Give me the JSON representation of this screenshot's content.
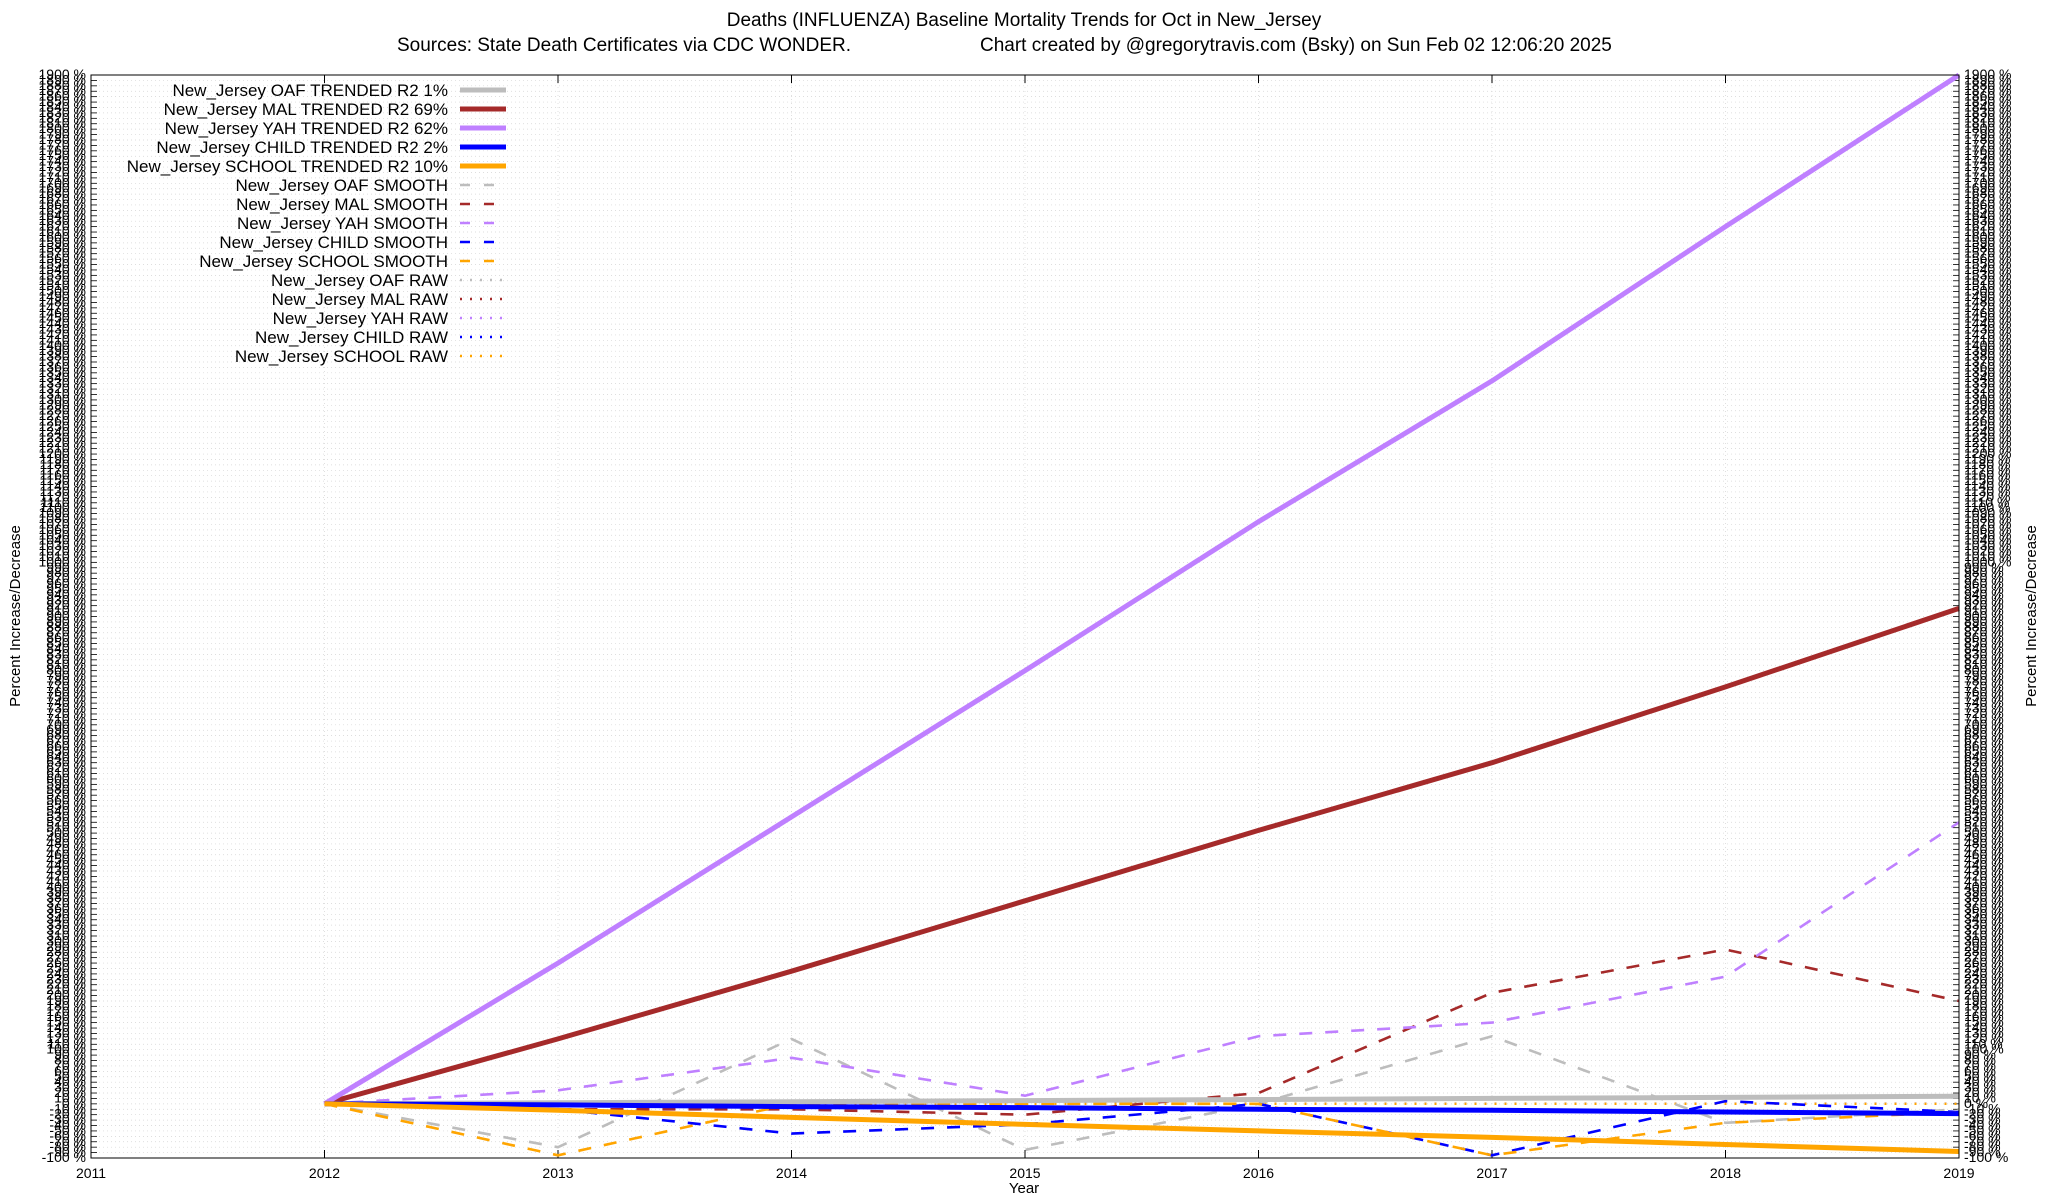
{
  "chart_data": {
    "type": "line",
    "title": "Deaths (INFLUENZA)  Baseline Mortality Trends for Oct in New_Jersey",
    "subtitle_left": "Sources: State Death Certificates via CDC WONDER.",
    "subtitle_right": "Chart created by @gregorytravis.com (Bsky) on Sun Feb 02 12:06:20 2025",
    "xlabel": "Year",
    "ylabel_left": "Percent Increase/Decrease",
    "ylabel_right": "Percent Increase/Decrease",
    "xlim": [
      2011,
      2019
    ],
    "ylim": [
      -100,
      1900
    ],
    "x_ticks": [
      "2011",
      "2012",
      "2013",
      "2014",
      "2015",
      "2016",
      "2017",
      "2018",
      "2019"
    ],
    "y_tick_step": 10,
    "y_tick_suffix": " %",
    "grid": true,
    "legend_position": "top-left",
    "series": [
      {
        "name": "New_Jersey OAF TRENDED R2  1%",
        "style": "solid",
        "color": "#bdbdbd",
        "x": [
          2012,
          2013,
          2014,
          2015,
          2016,
          2017,
          2018,
          2019
        ],
        "values": [
          0,
          2,
          4,
          6,
          8,
          10,
          12,
          14
        ]
      },
      {
        "name": "New_Jersey MAL TRENDED R2  69%",
        "style": "solid",
        "color": "#a52a2a",
        "x": [
          2012,
          2013,
          2014,
          2015,
          2016,
          2017,
          2018,
          2019
        ],
        "values": [
          0,
          120,
          245,
          375,
          505,
          630,
          770,
          915
        ]
      },
      {
        "name": "New_Jersey YAH TRENDED R2  62%",
        "style": "solid",
        "color": "#bf80ff",
        "x": [
          2012,
          2013,
          2014,
          2015,
          2016,
          2017,
          2018,
          2019
        ],
        "values": [
          0,
          260,
          530,
          800,
          1075,
          1335,
          1620,
          1900
        ]
      },
      {
        "name": "New_Jersey CHILD TRENDED R2  2%",
        "style": "solid",
        "color": "#0000ff",
        "x": [
          2012,
          2013,
          2014,
          2015,
          2016,
          2017,
          2018,
          2019
        ],
        "values": [
          0,
          -2,
          -5,
          -7,
          -10,
          -12,
          -15,
          -18
        ]
      },
      {
        "name": "New_Jersey SCHOOL TRENDED R2  10%",
        "style": "solid",
        "color": "#ffa500",
        "x": [
          2012,
          2013,
          2014,
          2015,
          2016,
          2017,
          2018,
          2019
        ],
        "values": [
          0,
          -12,
          -25,
          -38,
          -50,
          -62,
          -75,
          -88
        ]
      },
      {
        "name": "New_Jersey OAF SMOOTH",
        "style": "dashed",
        "color": "#bdbdbd",
        "x": [
          2012,
          2013,
          2014,
          2015,
          2016,
          2017,
          2018,
          2019
        ],
        "values": [
          0,
          -80,
          120,
          -85,
          0,
          125,
          -35,
          -10
        ]
      },
      {
        "name": "New_Jersey MAL SMOOTH",
        "style": "dashed",
        "color": "#a52a2a",
        "x": [
          2012,
          2013,
          2014,
          2015,
          2016,
          2017,
          2018,
          2019
        ],
        "values": [
          0,
          -10,
          -10,
          -20,
          20,
          205,
          285,
          190
        ]
      },
      {
        "name": "New_Jersey YAH SMOOTH",
        "style": "dashed",
        "color": "#bf80ff",
        "x": [
          2012,
          2013,
          2014,
          2015,
          2016,
          2017,
          2018,
          2019
        ],
        "values": [
          0,
          25,
          85,
          15,
          125,
          150,
          235,
          520
        ]
      },
      {
        "name": "New_Jersey CHILD SMOOTH",
        "style": "dashed",
        "color": "#0000ff",
        "x": [
          2012,
          2013,
          2014,
          2015,
          2016,
          2017,
          2018,
          2019
        ],
        "values": [
          0,
          -10,
          -55,
          -38,
          0,
          -95,
          5,
          -15
        ]
      },
      {
        "name": "New_Jersey SCHOOL SMOOTH",
        "style": "dashed",
        "color": "#ffa500",
        "x": [
          2012,
          2013,
          2014,
          2015,
          2016,
          2017,
          2018,
          2019
        ],
        "values": [
          0,
          -95,
          0,
          0,
          0,
          -95,
          -35,
          -15
        ]
      },
      {
        "name": "New_Jersey OAF RAW",
        "style": "dotted",
        "color": "#bdbdbd",
        "x": [
          2012,
          2013,
          2014,
          2015,
          2016,
          2017,
          2018,
          2019
        ],
        "values": [
          0,
          0,
          0,
          0,
          0,
          0,
          0,
          0
        ]
      },
      {
        "name": "New_Jersey MAL RAW",
        "style": "dotted",
        "color": "#a52a2a",
        "x": [
          2012,
          2013,
          2014,
          2015,
          2016,
          2017,
          2018,
          2019
        ],
        "values": [
          0,
          0,
          0,
          0,
          0,
          0,
          0,
          0
        ]
      },
      {
        "name": "New_Jersey YAH RAW",
        "style": "dotted",
        "color": "#bf80ff",
        "x": [
          2012,
          2013,
          2014,
          2015,
          2016,
          2017,
          2018,
          2019
        ],
        "values": [
          0,
          0,
          0,
          0,
          0,
          0,
          0,
          0
        ]
      },
      {
        "name": "New_Jersey CHILD RAW",
        "style": "dotted",
        "color": "#0000ff",
        "x": [
          2012,
          2013,
          2014,
          2015,
          2016,
          2017,
          2018,
          2019
        ],
        "values": [
          0,
          0,
          0,
          0,
          0,
          0,
          0,
          0
        ]
      },
      {
        "name": "New_Jersey SCHOOL RAW",
        "style": "dotted",
        "color": "#ffa500",
        "x": [
          2012,
          2013,
          2014,
          2015,
          2016,
          2017,
          2018,
          2019
        ],
        "values": [
          0,
          0,
          0,
          0,
          0,
          0,
          0,
          0
        ]
      }
    ]
  }
}
